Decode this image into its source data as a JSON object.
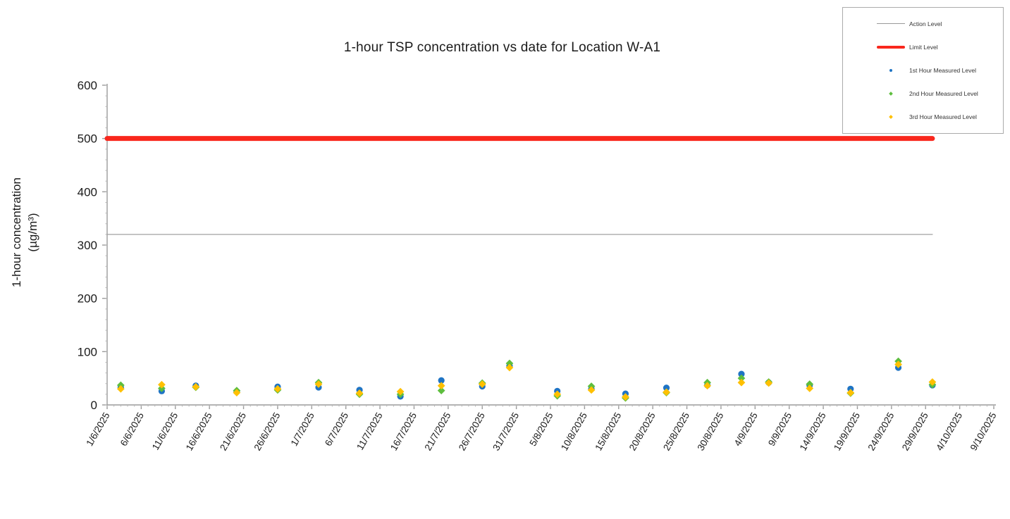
{
  "chart_data": {
    "type": "scatter",
    "title": "1-hour TSP concentration vs date for Location W-A1",
    "ylabel": "1-hour concentration (µg/m³)",
    "ylabel_line1": "1-hour concentration",
    "ylabel_line2": "(µg/m³)",
    "xlabel": "",
    "ylim": [
      0,
      600
    ],
    "yticks": [
      0,
      100,
      200,
      300,
      400,
      500,
      600
    ],
    "grid": false,
    "x_tick_labels": [
      "1/6/2025",
      "6/6/2025",
      "11/6/2025",
      "16/6/2025",
      "21/6/2025",
      "26/6/2025",
      "1/7/2025",
      "6/7/2025",
      "11/7/2025",
      "16/7/2025",
      "21/7/2025",
      "26/7/2025",
      "31/7/2025",
      "5/8/2025",
      "10/8/2025",
      "15/8/2025",
      "20/8/2025",
      "25/8/2025",
      "30/8/2025",
      "4/9/2025",
      "9/9/2025",
      "14/9/2025",
      "19/9/2025",
      "24/9/2025",
      "29/9/2025",
      "4/10/2025",
      "9/10/2025"
    ],
    "reference_lines": [
      {
        "name": "Action Level",
        "value": 320,
        "color": "#a0a0a0",
        "stroke_width": 1.3,
        "start": "1/6/2025",
        "end": "30/9/2025"
      },
      {
        "name": "Limit Level",
        "value": 500,
        "color": "#f9271d",
        "stroke_width": 7,
        "start": "1/6/2025",
        "end": "30/9/2025"
      }
    ],
    "x": [
      "3/6/2025",
      "9/6/2025",
      "14/6/2025",
      "20/6/2025",
      "26/6/2025",
      "2/7/2025",
      "8/7/2025",
      "14/7/2025",
      "20/7/2025",
      "26/7/2025",
      "30/7/2025",
      "6/8/2025",
      "11/8/2025",
      "16/8/2025",
      "22/8/2025",
      "28/8/2025",
      "2/9/2025",
      "6/9/2025",
      "12/9/2025",
      "18/9/2025",
      "25/9/2025",
      "30/9/2025"
    ],
    "series": [
      {
        "name": "1st Hour Measured Level",
        "marker": "circle",
        "color": "#1f74c4",
        "values": [
          33,
          26,
          36,
          25,
          34,
          33,
          28,
          16,
          46,
          35,
          73,
          26,
          30,
          21,
          32,
          37,
          58,
          42,
          37,
          30,
          70,
          37
        ]
      },
      {
        "name": "2nd Hour Measured Level",
        "marker": "diamond",
        "color": "#5ebe3e",
        "values": [
          37,
          31,
          33,
          27,
          28,
          42,
          20,
          20,
          27,
          41,
          78,
          17,
          35,
          13,
          23,
          42,
          50,
          43,
          39,
          22,
          82,
          38
        ]
      },
      {
        "name": "3rd Hour Measured Level",
        "marker": "diamond",
        "color": "#ffc000",
        "values": [
          30,
          38,
          34,
          23,
          30,
          39,
          22,
          25,
          36,
          39,
          70,
          20,
          28,
          15,
          24,
          36,
          42,
          41,
          31,
          23,
          76,
          43
        ]
      }
    ],
    "legend": {
      "position": "top-right",
      "items": [
        {
          "label": "Action Level",
          "swatch": "thin-line",
          "color": "#9a9a9a"
        },
        {
          "label": "Limit Level",
          "swatch": "thick-line",
          "color": "#f9271d"
        },
        {
          "label": "1st Hour Measured Level",
          "swatch": "dot-circle",
          "color": "#1f74c4"
        },
        {
          "label": "2nd Hour Measured Level",
          "swatch": "dot-diamond",
          "color": "#5ebe3e"
        },
        {
          "label": "3rd Hour Measured Level",
          "swatch": "dot-diamond",
          "color": "#ffc000"
        }
      ]
    },
    "axis_color": "#9b9b9b",
    "tick_label_color": "#1a1a1a"
  }
}
